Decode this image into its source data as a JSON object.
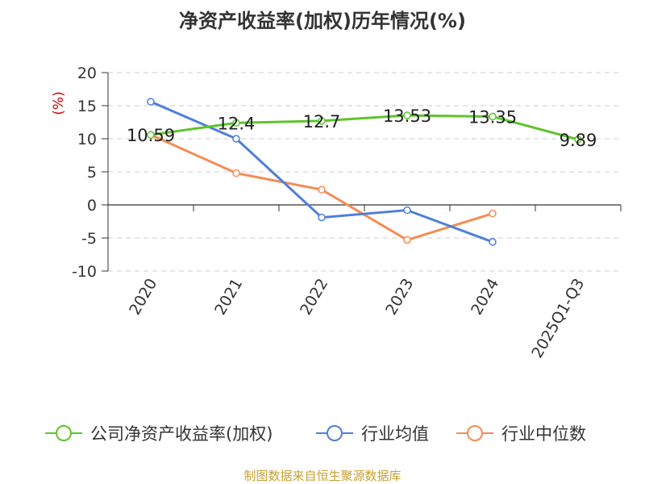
{
  "title": "净资产收益率(加权)历年情况(%)",
  "source": "制图数据来自恒生聚源数据库",
  "chart_data": {
    "type": "line",
    "title": "净资产收益率(加权)历年情况(%)",
    "ylabel": "(%)",
    "xlabel": "",
    "categories": [
      "2020",
      "2021",
      "2022",
      "2023",
      "2024",
      "2025Q1-Q3"
    ],
    "yticks": [
      "20",
      "15",
      "10",
      "5",
      "0",
      "-5",
      "-10"
    ],
    "ylim": [
      -10,
      20
    ],
    "grid": true,
    "legend_position": "bottom",
    "series": [
      {
        "name": "公司净资产收益率(加权)",
        "color": "#5ec42c",
        "values": [
          10.59,
          12.4,
          12.7,
          13.53,
          13.35,
          9.89
        ],
        "labels": [
          "10.59",
          "12.4",
          "12.7",
          "13.53",
          "13.35",
          "9.89"
        ]
      },
      {
        "name": "行业均值",
        "color": "#4f7fd9",
        "values": [
          15.6,
          10.0,
          -1.9,
          -0.8,
          -5.6,
          null
        ]
      },
      {
        "name": "行业中位数",
        "color": "#f48c55",
        "values": [
          10.6,
          4.8,
          2.3,
          -5.3,
          -1.3,
          null
        ]
      }
    ]
  }
}
